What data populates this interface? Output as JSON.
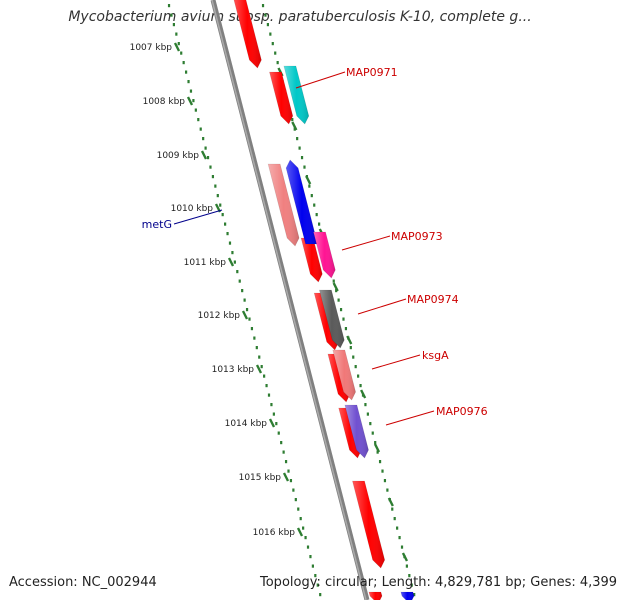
{
  "header": {
    "title": "Mycobacterium avium subsp. paratuberculosis K-10, complete g..."
  },
  "footer": {
    "accession": "Accession: NC_002944",
    "topology": "Topology: circular; Length: 4,829,781 bp; Genes: 4,399"
  },
  "map": {
    "axis_ticks": [
      "1007 kbp",
      "1008 kbp",
      "1009 kbp",
      "1010 kbp",
      "1011 kbp",
      "1012 kbp",
      "1013 kbp",
      "1014 kbp",
      "1015 kbp",
      "1016 kbp"
    ],
    "genes_forward": [
      {
        "label": "MAP0971",
        "color": "#00c8c8",
        "label_color": "#cc0000"
      },
      {
        "label": "MAP0973",
        "color": "#ff1493",
        "label_color": "#cc0000"
      },
      {
        "label": "MAP0974",
        "color": "#5a5a5a",
        "label_color": "#cc0000"
      },
      {
        "label": "ksgA",
        "color": "#f07878",
        "label_color": "#cc0000"
      },
      {
        "label": "MAP0976",
        "color": "#7050d0",
        "label_color": "#cc0000"
      },
      {
        "label": "metG",
        "color": "#0000ee",
        "label_color": "#00008b"
      }
    ],
    "colors": {
      "cds": "#ff0000",
      "cds_light": "#f08080",
      "backbone": "#808080",
      "tick": "#2e7d32"
    },
    "unlabeled_genes": [
      {
        "color": "#ff0000"
      },
      {
        "color": "#ff0000"
      },
      {
        "color": "#ff0000"
      },
      {
        "color": "#f08080"
      },
      {
        "color": "#ff0000"
      },
      {
        "color": "#ff0000"
      },
      {
        "color": "#ff0000"
      },
      {
        "color": "#ff0000"
      },
      {
        "color": "#ff0000"
      }
    ]
  }
}
